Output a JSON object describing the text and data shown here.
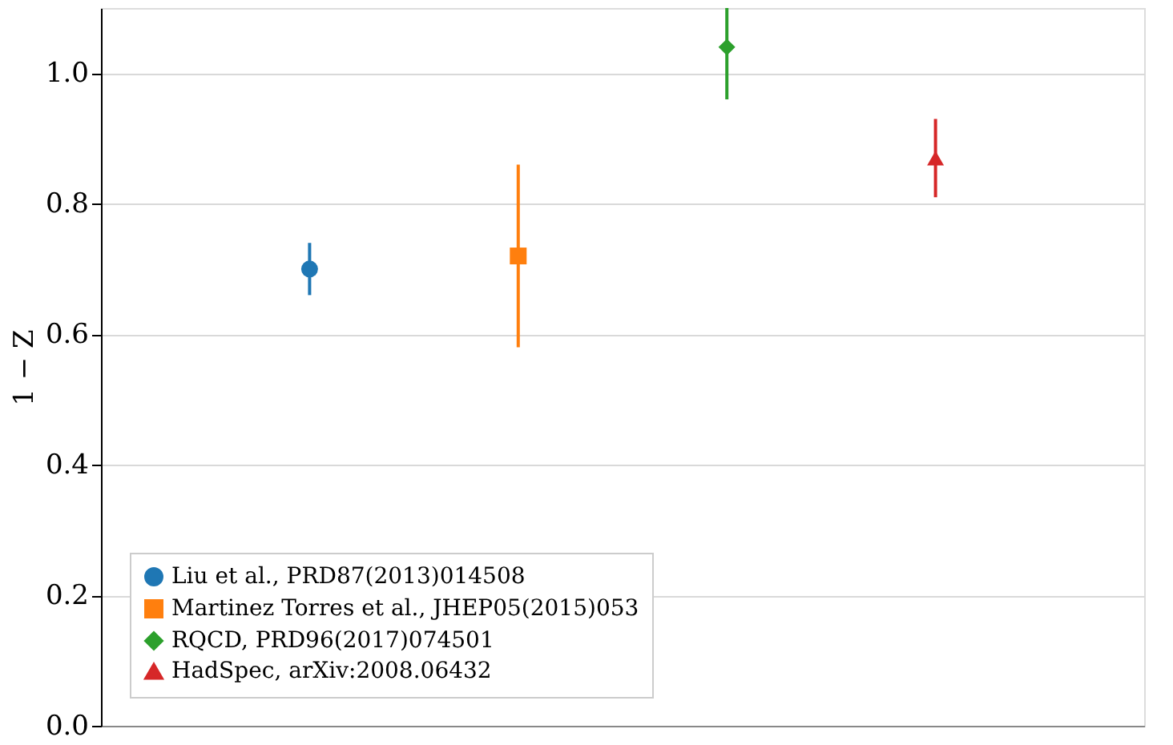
{
  "chart_data": {
    "type": "scatter",
    "ylabel": "1 − Z",
    "categories": [
      null,
      null,
      null,
      null
    ],
    "series": [
      {
        "name": "Liu et al., PRD87(2013)014508",
        "color": "#1f77b4",
        "marker": "circle",
        "values": [
          0.7,
          null,
          null,
          null
        ],
        "errors": [
          [
            0.66,
            0.74
          ],
          null,
          null,
          null
        ]
      },
      {
        "name": "Martinez Torres et al., JHEP05(2015)053",
        "color": "#ff7f0e",
        "marker": "square",
        "values": [
          null,
          0.72,
          null,
          null
        ],
        "errors": [
          null,
          [
            0.58,
            0.86
          ],
          null,
          null
        ]
      },
      {
        "name": "RQCD, PRD96(2017)074501",
        "color": "#2ca02c",
        "marker": "diamond",
        "values": [
          null,
          null,
          1.04,
          null
        ],
        "errors": [
          null,
          null,
          [
            0.96,
            1.1
          ],
          null
        ]
      },
      {
        "name": "HadSpec, arXiv:2008.06432",
        "color": "#d62728",
        "marker": "triangle",
        "values": [
          null,
          null,
          null,
          0.87
        ],
        "errors": [
          null,
          null,
          null,
          [
            0.81,
            0.93
          ]
        ]
      }
    ],
    "ylim": [
      0,
      1.1
    ],
    "yticks": [
      {
        "value": 0,
        "label": "0.0"
      },
      0.2,
      0.4,
      0.6,
      0.8,
      {
        "value": 1,
        "label": "1.0"
      }
    ],
    "grid": "y",
    "legend": "bottom left"
  }
}
